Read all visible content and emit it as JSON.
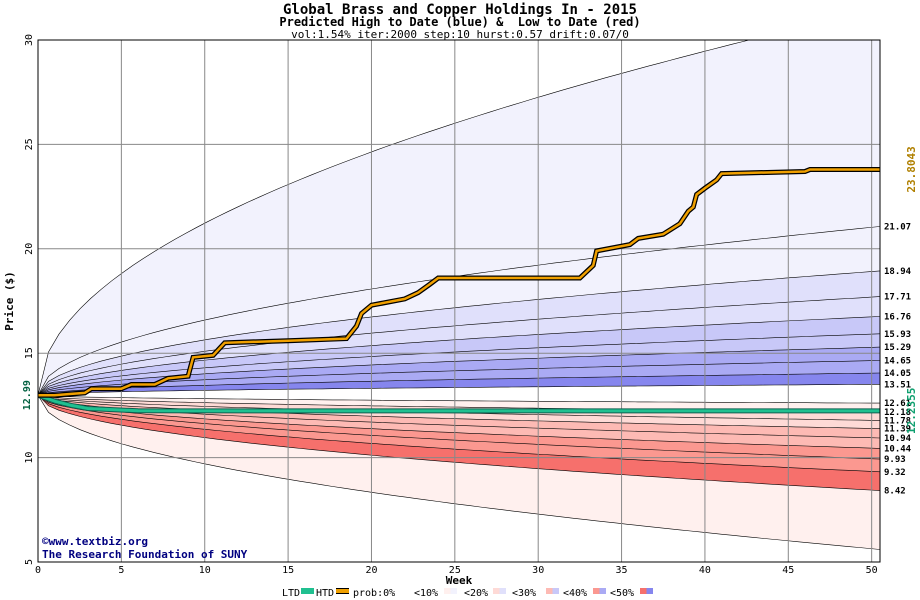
{
  "header": {
    "title": "Global Brass and Copper Holdings In - 2015",
    "subtitle": "Predicted High to Date (blue) &  Low to Date (red)",
    "params": "vol:1.54% iter:2000 step:10 hurst:0.57 drift:0.07/0"
  },
  "credits": {
    "site": "©www.textbiz.org",
    "org": "The Research Foundation of SUNY"
  },
  "legend": {
    "ltd": "LTD",
    "htd": "HTD",
    "prob0": "prob:0%",
    "p10": "<10%",
    "p20": "<20%",
    "p30": "<30%",
    "p40": "<40%",
    "p50": "<50%"
  },
  "chart_data": {
    "type": "area",
    "title": "Global Brass and Copper Holdings In - 2015",
    "xlabel": "Week",
    "ylabel": "Price ($)",
    "xlim": [
      0,
      50.5
    ],
    "ylim": [
      5,
      30
    ],
    "xticks": [
      0,
      5,
      10,
      15,
      20,
      25,
      30,
      35,
      40,
      45,
      50
    ],
    "yticks": [
      5,
      10,
      15,
      20,
      25,
      30
    ],
    "grid": true,
    "start_price": 12.99,
    "start_label": "12.99",
    "htd_final_label": "23.8043",
    "ltd_final_label": "12.2355",
    "colors": {
      "htd": "#f0a000",
      "ltd": "#20c090",
      "band_blue": [
        "#f2f2fd",
        "#e0e0fb",
        "#c8c8f8",
        "#aaaaf4",
        "#8686ee"
      ],
      "band_red": [
        "#fff0ee",
        "#fedad6",
        "#fdbab4",
        "#fb9890",
        "#f6706c"
      ]
    },
    "upper_quantile_labels": [
      "21.07",
      "18.94",
      "17.71",
      "16.76",
      "15.93",
      "15.29",
      "14.65",
      "14.05",
      "13.51"
    ],
    "upper_quantile_finals": [
      21.07,
      18.94,
      17.71,
      16.76,
      15.93,
      15.29,
      14.65,
      14.05,
      13.51
    ],
    "lower_quantile_labels": [
      "12.61",
      "12.18",
      "11.78",
      "11.39",
      "10.94",
      "10.44",
      "9.93",
      "9.32",
      "8.42"
    ],
    "lower_quantile_finals": [
      12.61,
      12.18,
      11.78,
      11.39,
      10.94,
      10.44,
      9.93,
      9.32,
      8.42
    ],
    "outer_upper_final": 31.5,
    "outer_lower_final": 5.6,
    "htd_series": {
      "x": [
        0,
        1,
        2,
        2.8,
        3.2,
        5,
        5.6,
        7,
        7.8,
        9,
        9.3,
        10.5,
        11.2,
        15,
        18.5,
        19.1,
        19.4,
        20,
        22,
        22.8,
        23.5,
        24,
        32.5,
        33.3,
        33.5,
        35.5,
        36,
        37.5,
        38.5,
        39,
        39.3,
        39.5,
        40,
        40.7,
        41,
        46,
        46.3,
        50.5
      ],
      "y": [
        12.99,
        12.99,
        13.05,
        13.1,
        13.3,
        13.3,
        13.5,
        13.5,
        13.8,
        13.9,
        14.8,
        14.9,
        15.5,
        15.6,
        15.7,
        16.3,
        16.9,
        17.3,
        17.6,
        17.9,
        18.3,
        18.6,
        18.6,
        19.2,
        19.9,
        20.2,
        20.5,
        20.7,
        21.2,
        21.8,
        22,
        22.6,
        22.9,
        23.3,
        23.6,
        23.7,
        23.8,
        23.8
      ]
    },
    "ltd_series": {
      "x": [
        0,
        1,
        2,
        3,
        6,
        50.5
      ],
      "y": [
        12.99,
        12.7,
        12.5,
        12.35,
        12.24,
        12.2355
      ]
    }
  }
}
